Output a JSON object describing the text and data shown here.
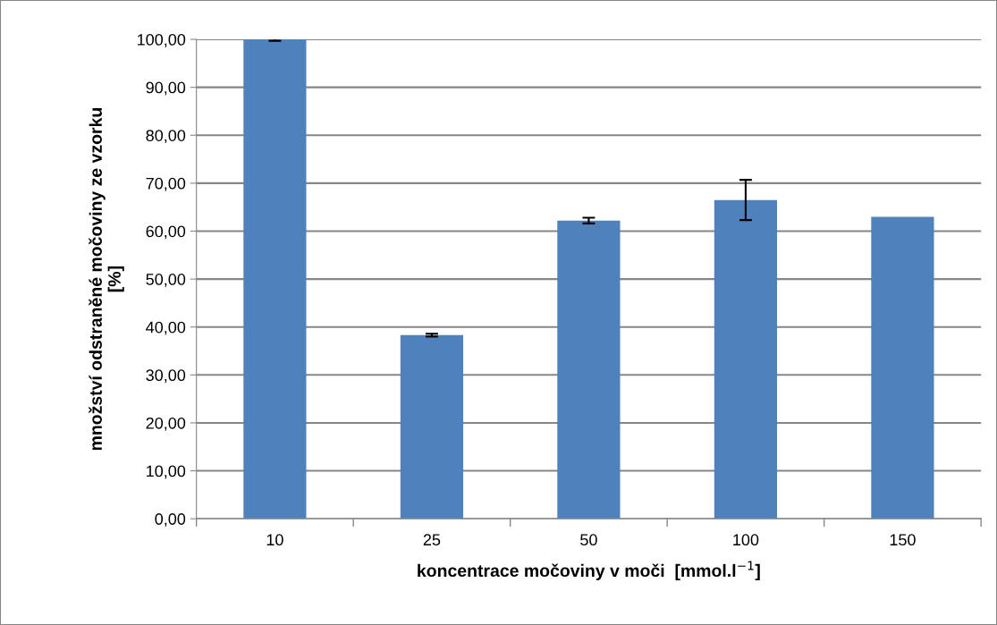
{
  "chart_data": {
    "type": "bar",
    "xlabel": "koncentrace močoviny v moči  [mmol.l$^{−1}$]",
    "ylabel": "množství odstraněné močoviny ze vzorku\n[%]",
    "categories": [
      "10",
      "25",
      "50",
      "100",
      "150"
    ],
    "values": [
      100,
      38.3,
      62.2,
      66.5,
      63.0
    ],
    "errors": [
      0.3,
      0.3,
      0.6,
      4.2,
      null
    ],
    "color": "#4f81bd",
    "ylim": [
      0,
      100
    ],
    "yticks": [
      {
        "value": 0,
        "label": "0,00"
      },
      {
        "value": 10,
        "label": "10,00"
      },
      {
        "value": 20,
        "label": "20,00"
      },
      {
        "value": 30,
        "label": "30,00"
      },
      {
        "value": 40,
        "label": "40,00"
      },
      {
        "value": 50,
        "label": "50,00"
      },
      {
        "value": 60,
        "label": "60,00"
      },
      {
        "value": 70,
        "label": "70,00"
      },
      {
        "value": 80,
        "label": "80,00"
      },
      {
        "value": 90,
        "label": "90,00"
      },
      {
        "value": 100,
        "label": "100,00"
      }
    ],
    "grid": "y"
  }
}
